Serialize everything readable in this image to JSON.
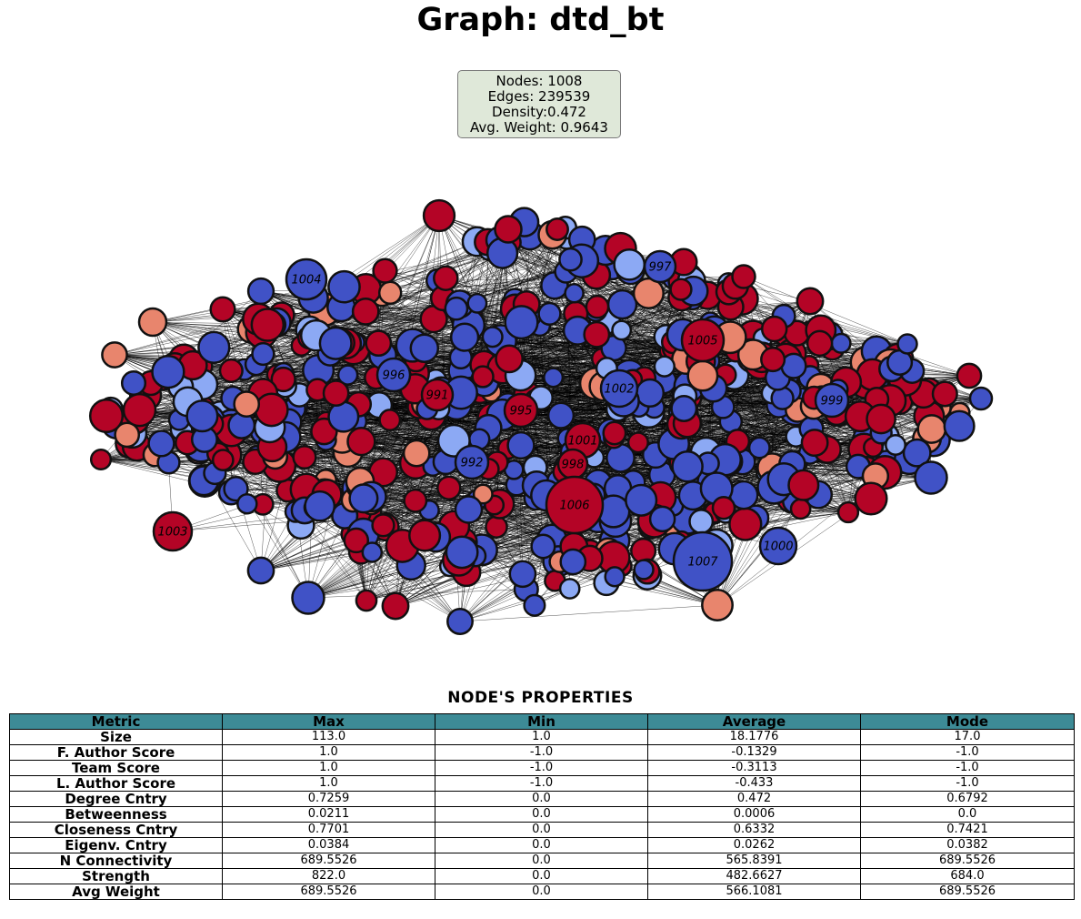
{
  "title": "Graph: dtd_bt",
  "stats": {
    "nodes": "Nodes: 1008",
    "edges": "Edges: 239539",
    "density": "Density:0.472",
    "avg_weight": "Avg. Weight: 0.9643"
  },
  "colors": {
    "red": "#b40426",
    "salmon": "#e8856d",
    "blue": "#4052c6",
    "light_blue": "#8ca9f4",
    "header": "#3d8b96",
    "stats_box": "#dfe8d9"
  },
  "graph": {
    "labeled_nodes": [
      {
        "label": "1004",
        "color": "blue"
      },
      {
        "label": "997",
        "color": "blue"
      },
      {
        "label": "1005",
        "color": "red"
      },
      {
        "label": "996",
        "color": "blue"
      },
      {
        "label": "991",
        "color": "red"
      },
      {
        "label": "1002",
        "color": "blue"
      },
      {
        "label": "999",
        "color": "blue"
      },
      {
        "label": "995",
        "color": "red"
      },
      {
        "label": "1001",
        "color": "red"
      },
      {
        "label": "992",
        "color": "blue"
      },
      {
        "label": "998",
        "color": "red"
      },
      {
        "label": "1006",
        "color": "red"
      },
      {
        "label": "1003",
        "color": "red"
      },
      {
        "label": "1000",
        "color": "blue"
      },
      {
        "label": "1007",
        "color": "blue"
      }
    ]
  },
  "table": {
    "title": "NODE'S PROPERTIES",
    "headers": [
      "Metric",
      "Max",
      "Min",
      "Average",
      "Mode"
    ],
    "rows": [
      [
        "Size",
        "113.0",
        "1.0",
        "18.1776",
        "17.0"
      ],
      [
        "F. Author Score",
        "1.0",
        "-1.0",
        "-0.1329",
        "-1.0"
      ],
      [
        "Team Score",
        "1.0",
        "-1.0",
        "-0.3113",
        "-1.0"
      ],
      [
        "L. Author Score",
        "1.0",
        "-1.0",
        "-0.433",
        "-1.0"
      ],
      [
        "Degree Cntry",
        "0.7259",
        "0.0",
        "0.472",
        "0.6792"
      ],
      [
        "Betweenness",
        "0.0211",
        "0.0",
        "0.0006",
        "0.0"
      ],
      [
        "Closeness Cntry",
        "0.7701",
        "0.0",
        "0.6332",
        "0.7421"
      ],
      [
        "Eigenv. Cntry",
        "0.0384",
        "0.0",
        "0.0262",
        "0.0382"
      ],
      [
        "N Connectivity",
        "689.5526",
        "0.0",
        "565.8391",
        "689.5526"
      ],
      [
        "Strength",
        "822.0",
        "0.0",
        "482.6627",
        "684.0"
      ],
      [
        "Avg Weight",
        "689.5526",
        "0.0",
        "566.1081",
        "689.5526"
      ]
    ]
  }
}
